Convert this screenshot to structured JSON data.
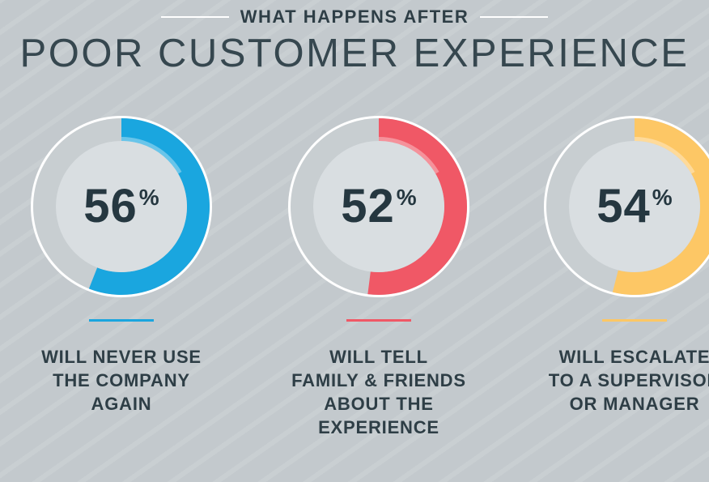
{
  "header": {
    "kicker": "WHAT HAPPENS AFTER",
    "title": "POOR CUSTOMER EXPERIENCE"
  },
  "chart_data": {
    "type": "pie",
    "title": "POOR CUSTOMER EXPERIENCE",
    "subtitle": "WHAT HAPPENS AFTER",
    "unit": "%",
    "items": [
      {
        "value": 56,
        "label_lines": [
          "WILL NEVER USE",
          "THE COMPANY",
          "AGAIN"
        ],
        "color": "#1aa6df"
      },
      {
        "value": 52,
        "label_lines": [
          "WILL TELL",
          "FAMILY & FRIENDS",
          "ABOUT THE",
          "EXPERIENCE"
        ],
        "color": "#f05866"
      },
      {
        "value": 54,
        "label_lines": [
          "WILL ESCALATE",
          "TO A SUPERVISOR",
          "OR MANAGER"
        ],
        "color": "#fdc765"
      }
    ]
  },
  "colors": {
    "background": "#c3c9cd",
    "ring_track": "#c8ced1",
    "inner_disc": "#d9dee1",
    "text_dark": "#253740"
  }
}
